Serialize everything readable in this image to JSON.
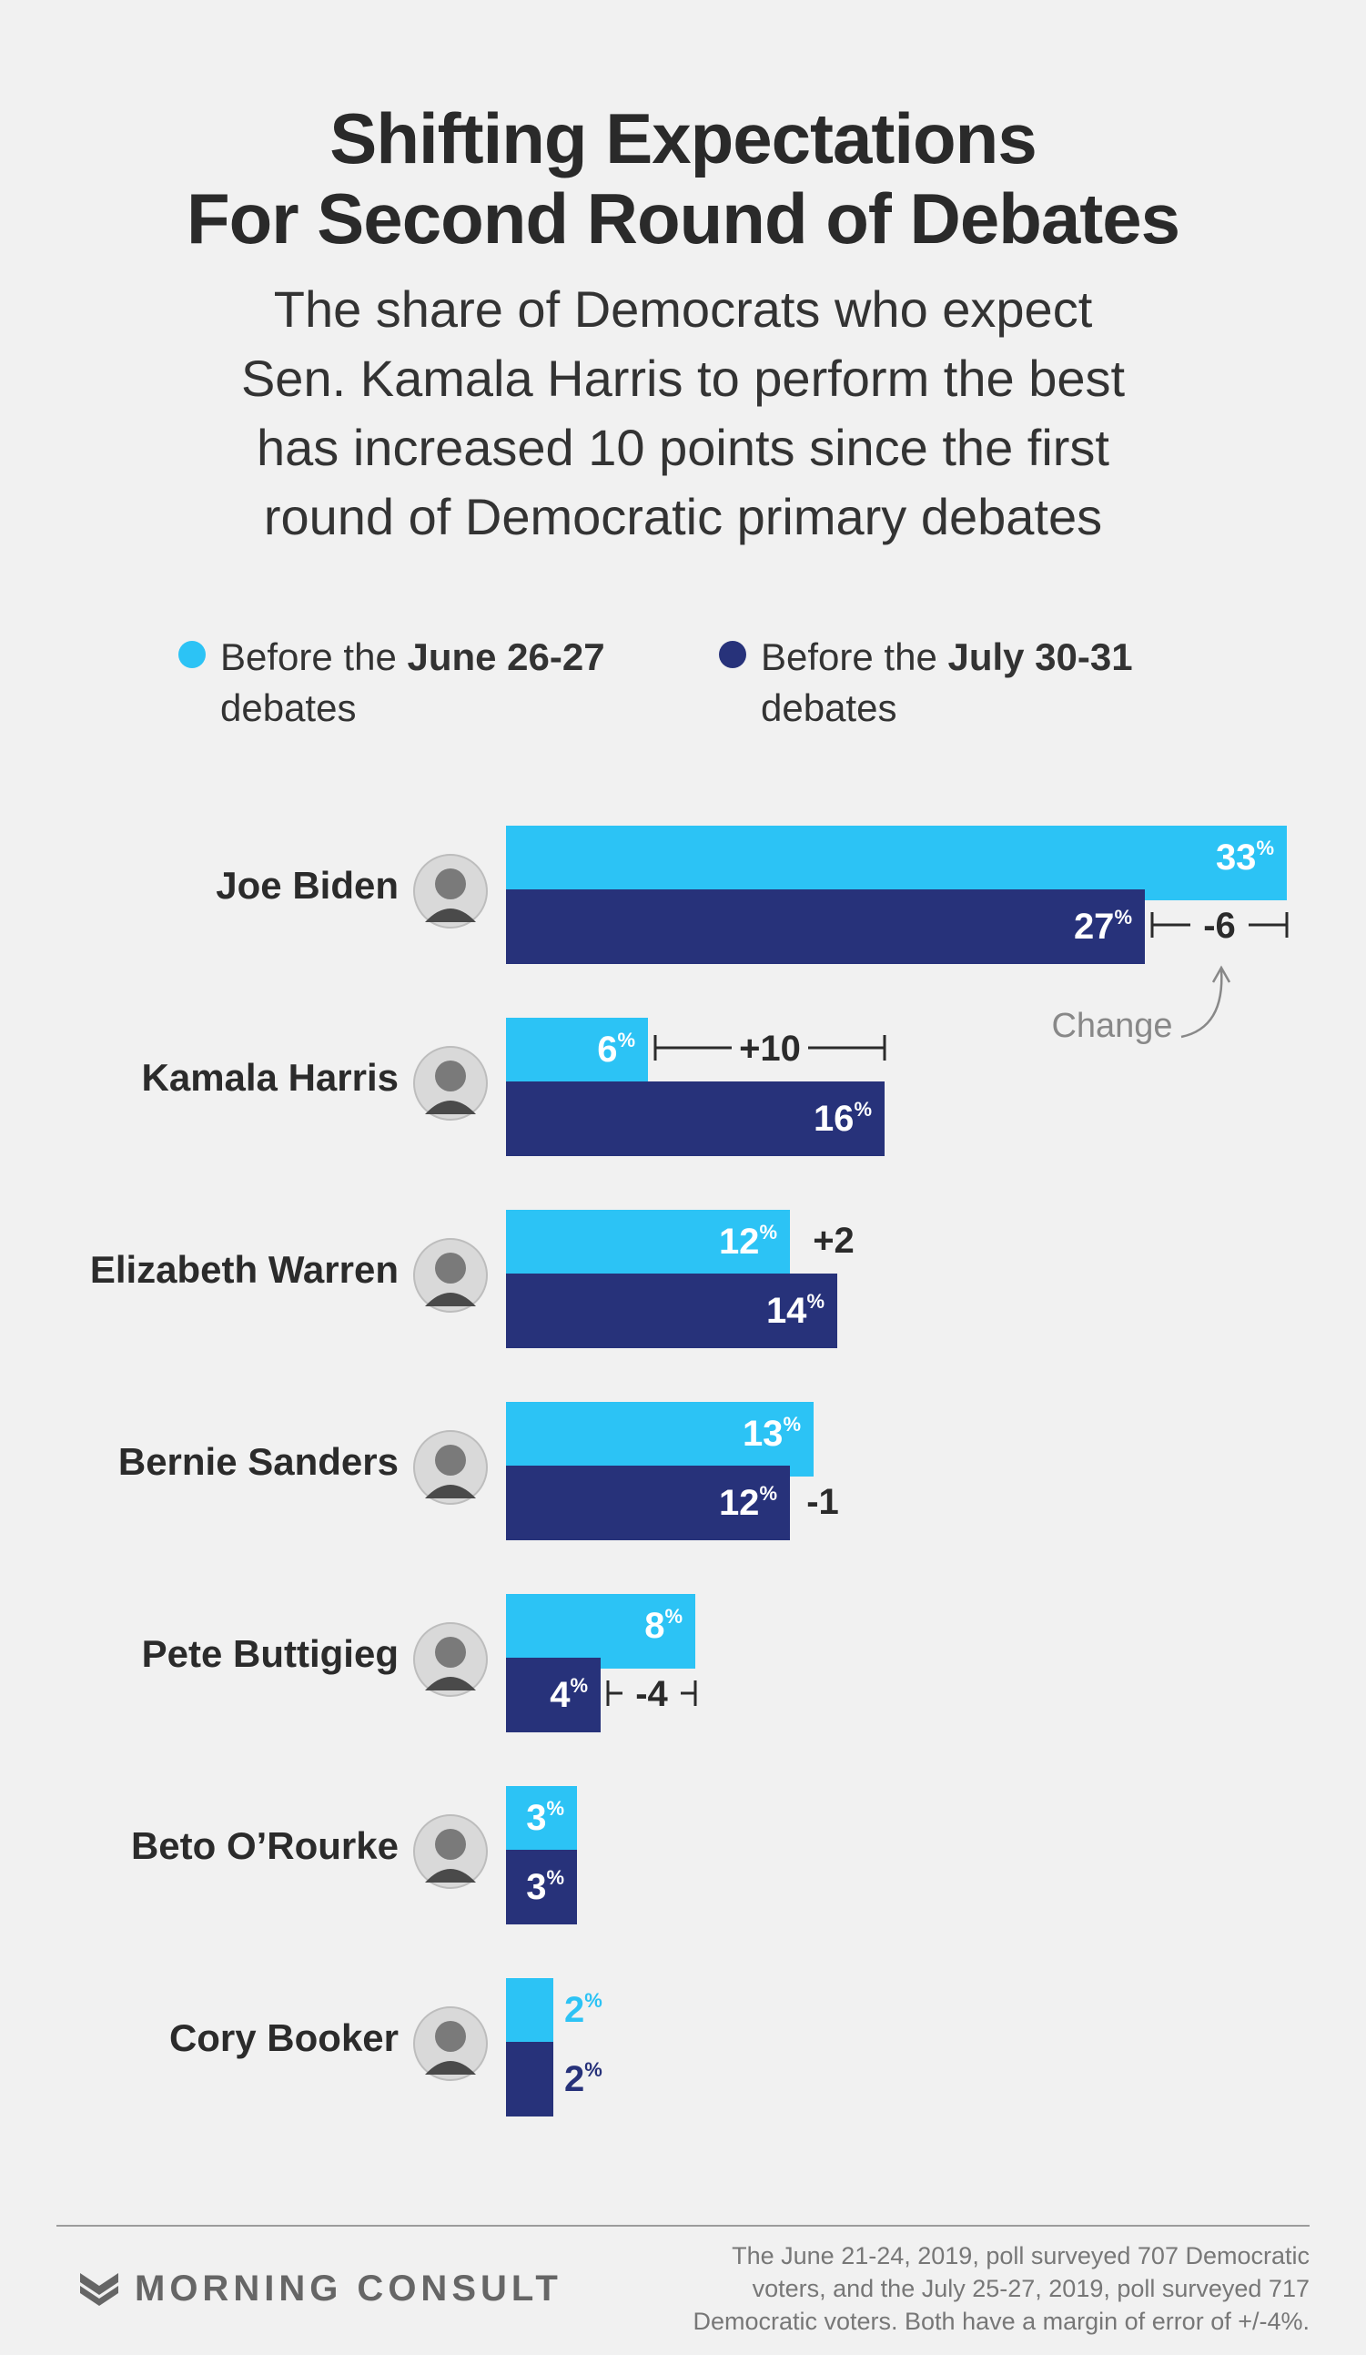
{
  "title_line1": "Shifting Expectations",
  "title_line2": "For Second Round of Debates",
  "subtitle_lines": [
    "The share of Democrats who expect",
    "Sen. Kamala Harris to perform the best",
    "has increased 10 points since the first",
    "round of Democratic primary debates"
  ],
  "legend": {
    "june": {
      "prefix": "Before the ",
      "bold": "June 26-27",
      "suffix": "debates",
      "color": "#2cc3f5"
    },
    "july": {
      "prefix": "Before the ",
      "bold": "July 30-31",
      "suffix": "debates",
      "color": "#27327a"
    }
  },
  "chart_data": {
    "type": "bar",
    "orientation": "horizontal",
    "unit": "%",
    "categories": [
      "Joe Biden",
      "Kamala Harris",
      "Elizabeth Warren",
      "Bernie Sanders",
      "Pete Buttigieg",
      "Beto O’Rourke",
      "Cory Booker"
    ],
    "series": [
      {
        "name": "Before the June 26-27 debates",
        "color": "#2cc3f5",
        "values": [
          33,
          6,
          12,
          13,
          8,
          3,
          2
        ]
      },
      {
        "name": "Before the July 30-31 debates",
        "color": "#27327a",
        "values": [
          27,
          16,
          14,
          12,
          4,
          3,
          2
        ]
      }
    ],
    "changes": [
      "-6",
      "+10",
      "+2",
      "-1",
      "-4",
      "",
      ""
    ],
    "change_annotation": "Change"
  },
  "footer": {
    "brand": "MORNING CONSULT",
    "note_lines": [
      "The June 21-24, 2019, poll surveyed 707 Democratic",
      "voters, and the July 25-27, 2019, poll surveyed 717",
      "Democratic voters. Both have a margin of error of +/-4%."
    ]
  }
}
